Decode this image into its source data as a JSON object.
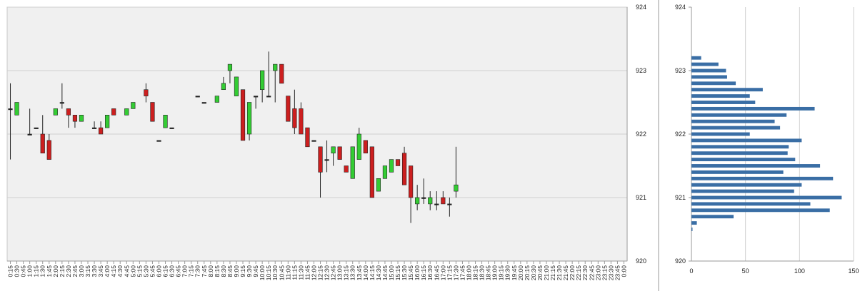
{
  "colors": {
    "up": "#33cc33",
    "down": "#cc1f1f",
    "plot_bg": "#f0f0f0",
    "grid": "#d0d0d0",
    "profile_bar": "#3a6ea5"
  },
  "chart_data": [
    {
      "type": "candlestick",
      "y_ticks": [
        "920",
        "921",
        "922",
        "923",
        "924"
      ],
      "ylim": [
        920,
        924
      ],
      "grid": true,
      "x_labels": [
        "0:15",
        "0:30",
        "0:45",
        "1:00",
        "1:15",
        "1:30",
        "1:45",
        "2:00",
        "2:15",
        "2:30",
        "2:45",
        "3:00",
        "3:15",
        "3:30",
        "3:45",
        "4:00",
        "4:15",
        "4:30",
        "4:45",
        "5:00",
        "5:15",
        "5:30",
        "5:45",
        "6:00",
        "6:15",
        "6:30",
        "6:45",
        "7:00",
        "7:15",
        "7:30",
        "7:45",
        "8:00",
        "8:15",
        "8:30",
        "8:45",
        "9:00",
        "9:15",
        "9:30",
        "9:45",
        "10:00",
        "10:15",
        "10:30",
        "10:45",
        "11:00",
        "11:15",
        "11:30",
        "11:45",
        "12:00",
        "12:15",
        "12:30",
        "12:45",
        "13:00",
        "13:15",
        "13:30",
        "13:45",
        "14:00",
        "14:15",
        "14:30",
        "14:45",
        "15:00",
        "15:15",
        "15:30",
        "15:45",
        "16:00",
        "16:15",
        "16:30",
        "16:45",
        "17:00",
        "17:15",
        "17:30",
        "17:45",
        "18:00",
        "18:15",
        "18:30",
        "18:45",
        "19:00",
        "19:15",
        "19:30",
        "19:45",
        "20:00",
        "20:15",
        "20:30",
        "20:45",
        "21:00",
        "21:15",
        "21:30",
        "21:45",
        "22:00",
        "22:15",
        "22:30",
        "22:45",
        "23:00",
        "23:15",
        "23:30",
        "23:45",
        "0:00"
      ],
      "candles": [
        {
          "x": "0:15",
          "o": 922.4,
          "h": 922.8,
          "l": 921.6,
          "c": 922.4
        },
        {
          "x": "0:30",
          "o": 922.3,
          "h": 922.5,
          "l": 922.3,
          "c": 922.5
        },
        {
          "x": "1:00",
          "o": 922.0,
          "h": 922.4,
          "l": 922.0,
          "c": 922.0
        },
        {
          "x": "1:15",
          "o": 922.1,
          "h": 922.1,
          "l": 922.1,
          "c": 922.1
        },
        {
          "x": "1:30",
          "o": 922.0,
          "h": 922.3,
          "l": 921.7,
          "c": 921.7
        },
        {
          "x": "1:45",
          "o": 921.9,
          "h": 922.0,
          "l": 921.6,
          "c": 921.6
        },
        {
          "x": "2:00",
          "o": 922.3,
          "h": 922.4,
          "l": 922.3,
          "c": 922.4
        },
        {
          "x": "2:15",
          "o": 922.5,
          "h": 922.8,
          "l": 922.4,
          "c": 922.5
        },
        {
          "x": "2:30",
          "o": 922.4,
          "h": 922.4,
          "l": 922.1,
          "c": 922.3
        },
        {
          "x": "2:45",
          "o": 922.3,
          "h": 922.3,
          "l": 922.1,
          "c": 922.2
        },
        {
          "x": "3:00",
          "o": 922.2,
          "h": 922.3,
          "l": 922.2,
          "c": 922.3
        },
        {
          "x": "3:30",
          "o": 922.1,
          "h": 922.2,
          "l": 922.1,
          "c": 922.1
        },
        {
          "x": "3:45",
          "o": 922.1,
          "h": 922.2,
          "l": 922.0,
          "c": 922.0
        },
        {
          "x": "4:00",
          "o": 922.1,
          "h": 922.3,
          "l": 922.1,
          "c": 922.3
        },
        {
          "x": "4:15",
          "o": 922.4,
          "h": 922.4,
          "l": 922.3,
          "c": 922.3
        },
        {
          "x": "4:45",
          "o": 922.3,
          "h": 922.4,
          "l": 922.3,
          "c": 922.4
        },
        {
          "x": "5:00",
          "o": 922.4,
          "h": 922.5,
          "l": 922.4,
          "c": 922.5
        },
        {
          "x": "5:30",
          "o": 922.7,
          "h": 922.8,
          "l": 922.5,
          "c": 922.6
        },
        {
          "x": "5:45",
          "o": 922.5,
          "h": 922.5,
          "l": 922.2,
          "c": 922.2
        },
        {
          "x": "6:00",
          "o": 921.9,
          "h": 921.9,
          "l": 921.9,
          "c": 921.9
        },
        {
          "x": "6:15",
          "o": 922.1,
          "h": 922.3,
          "l": 922.1,
          "c": 922.3
        },
        {
          "x": "6:30",
          "o": 922.1,
          "h": 922.1,
          "l": 922.1,
          "c": 922.1
        },
        {
          "x": "7:30",
          "o": 922.6,
          "h": 922.6,
          "l": 922.6,
          "c": 922.6
        },
        {
          "x": "7:45",
          "o": 922.5,
          "h": 922.5,
          "l": 922.5,
          "c": 922.5
        },
        {
          "x": "8:15",
          "o": 922.5,
          "h": 922.6,
          "l": 922.5,
          "c": 922.6
        },
        {
          "x": "8:30",
          "o": 922.7,
          "h": 922.9,
          "l": 922.7,
          "c": 922.8
        },
        {
          "x": "8:45",
          "o": 923.0,
          "h": 923.1,
          "l": 922.8,
          "c": 923.1
        },
        {
          "x": "9:00",
          "o": 922.6,
          "h": 922.9,
          "l": 922.6,
          "c": 922.9
        },
        {
          "x": "9:15",
          "o": 922.7,
          "h": 922.7,
          "l": 921.9,
          "c": 921.9
        },
        {
          "x": "9:30",
          "o": 922.0,
          "h": 922.5,
          "l": 921.9,
          "c": 922.5
        },
        {
          "x": "9:45",
          "o": 922.6,
          "h": 922.6,
          "l": 922.4,
          "c": 922.6
        },
        {
          "x": "10:00",
          "o": 922.7,
          "h": 923.0,
          "l": 922.5,
          "c": 923.0
        },
        {
          "x": "10:15",
          "o": 922.6,
          "h": 923.3,
          "l": 922.6,
          "c": 922.6
        },
        {
          "x": "10:30",
          "o": 923.0,
          "h": 923.1,
          "l": 922.5,
          "c": 923.1
        },
        {
          "x": "10:45",
          "o": 923.1,
          "h": 923.1,
          "l": 922.8,
          "c": 922.8
        },
        {
          "x": "11:00",
          "o": 922.6,
          "h": 922.6,
          "l": 922.2,
          "c": 922.2
        },
        {
          "x": "11:15",
          "o": 922.4,
          "h": 922.7,
          "l": 922.0,
          "c": 922.1
        },
        {
          "x": "11:30",
          "o": 922.4,
          "h": 922.5,
          "l": 922.0,
          "c": 922.0
        },
        {
          "x": "11:45",
          "o": 922.1,
          "h": 922.1,
          "l": 921.8,
          "c": 921.8
        },
        {
          "x": "12:00",
          "o": 921.9,
          "h": 921.9,
          "l": 921.9,
          "c": 921.9
        },
        {
          "x": "12:15",
          "o": 921.8,
          "h": 921.8,
          "l": 921.0,
          "c": 921.4
        },
        {
          "x": "12:30",
          "o": 921.6,
          "h": 921.9,
          "l": 921.4,
          "c": 921.6
        },
        {
          "x": "12:45",
          "o": 921.7,
          "h": 921.8,
          "l": 921.5,
          "c": 921.8
        },
        {
          "x": "13:00",
          "o": 921.8,
          "h": 921.8,
          "l": 921.6,
          "c": 921.6
        },
        {
          "x": "13:15",
          "o": 921.5,
          "h": 921.5,
          "l": 921.4,
          "c": 921.4
        },
        {
          "x": "13:30",
          "o": 921.3,
          "h": 921.8,
          "l": 921.3,
          "c": 921.8
        },
        {
          "x": "13:45",
          "o": 921.6,
          "h": 922.1,
          "l": 921.6,
          "c": 922.0
        },
        {
          "x": "14:00",
          "o": 921.9,
          "h": 921.9,
          "l": 921.7,
          "c": 921.7
        },
        {
          "x": "14:15",
          "o": 921.8,
          "h": 921.8,
          "l": 921.0,
          "c": 921.0
        },
        {
          "x": "14:30",
          "o": 921.1,
          "h": 921.3,
          "l": 921.1,
          "c": 921.3
        },
        {
          "x": "14:45",
          "o": 921.3,
          "h": 921.5,
          "l": 921.3,
          "c": 921.5
        },
        {
          "x": "15:00",
          "o": 921.4,
          "h": 921.6,
          "l": 921.4,
          "c": 921.6
        },
        {
          "x": "15:15",
          "o": 921.6,
          "h": 921.6,
          "l": 921.5,
          "c": 921.5
        },
        {
          "x": "15:30",
          "o": 921.7,
          "h": 921.8,
          "l": 921.2,
          "c": 921.2
        },
        {
          "x": "15:45",
          "o": 921.5,
          "h": 921.5,
          "l": 920.6,
          "c": 921.0
        },
        {
          "x": "16:00",
          "o": 920.9,
          "h": 921.2,
          "l": 920.8,
          "c": 921.0
        },
        {
          "x": "16:15",
          "o": 921.0,
          "h": 921.3,
          "l": 920.9,
          "c": 921.0
        },
        {
          "x": "16:30",
          "o": 920.9,
          "h": 921.1,
          "l": 920.8,
          "c": 921.0
        },
        {
          "x": "16:45",
          "o": 920.9,
          "h": 921.1,
          "l": 920.8,
          "c": 920.9
        },
        {
          "x": "17:00",
          "o": 921.0,
          "h": 921.1,
          "l": 920.9,
          "c": 920.9
        },
        {
          "x": "17:15",
          "o": 920.9,
          "h": 921.0,
          "l": 920.7,
          "c": 920.9
        },
        {
          "x": "17:30",
          "o": 921.1,
          "h": 921.8,
          "l": 921.0,
          "c": 921.2
        }
      ]
    },
    {
      "type": "bar",
      "orientation": "horizontal",
      "y_ticks": [
        "920",
        "921",
        "922",
        "923",
        "924"
      ],
      "ylim": [
        920,
        924
      ],
      "x_ticks": [
        "0",
        "50",
        "100",
        "150"
      ],
      "xlim": [
        0,
        150
      ],
      "grid": true,
      "levels": [
        923.2,
        923.1,
        923.0,
        922.9,
        922.8,
        922.7,
        922.6,
        922.5,
        922.4,
        922.3,
        922.2,
        922.1,
        922.0,
        921.9,
        921.8,
        921.7,
        921.6,
        921.5,
        921.4,
        921.3,
        921.2,
        921.1,
        921.0,
        920.9,
        920.8,
        920.7,
        920.6,
        920.5
      ],
      "values": [
        9,
        25,
        32,
        33,
        41,
        66,
        54,
        59,
        114,
        88,
        77,
        82,
        54,
        102,
        90,
        89,
        96,
        119,
        85,
        131,
        102,
        95,
        139,
        110,
        128,
        39,
        5,
        1
      ]
    }
  ]
}
